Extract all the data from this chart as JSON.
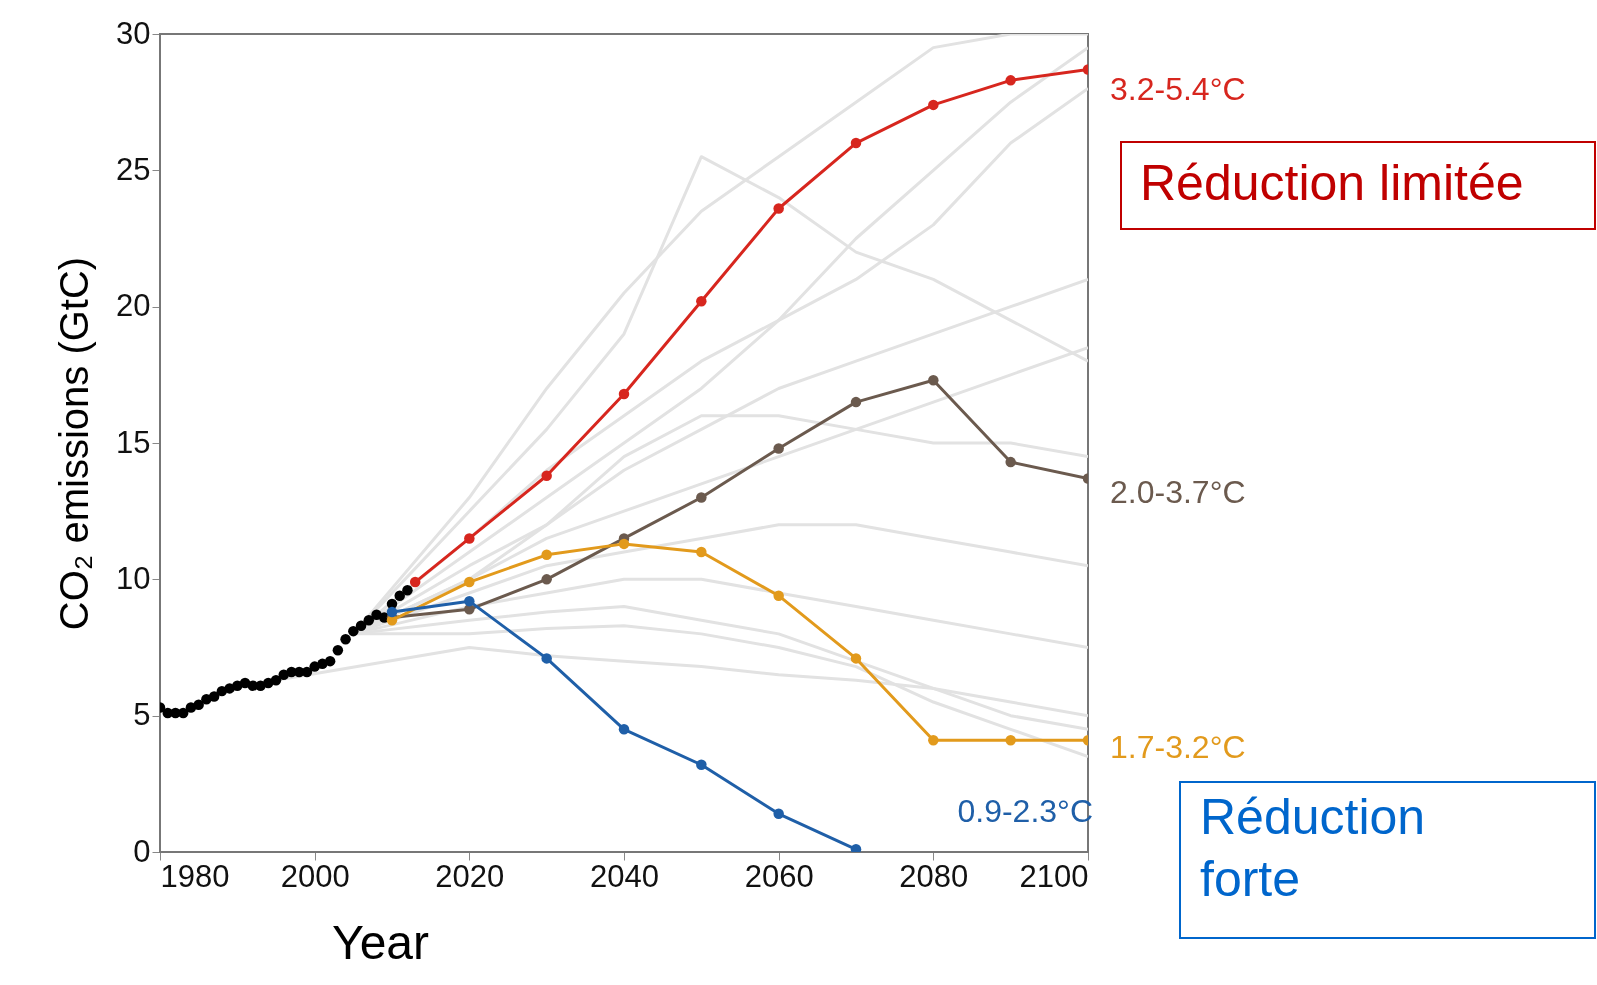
{
  "chart_data": {
    "type": "line",
    "xlabel": "Year",
    "ylabel": "CO₂ emissions (GtC)",
    "xlim": [
      1980,
      2100
    ],
    "xticks": [
      1980,
      2000,
      2020,
      2040,
      2060,
      2080,
      2100
    ],
    "ylim": [
      0,
      30
    ],
    "yticks": [
      0,
      5,
      10,
      15,
      20,
      25,
      30
    ],
    "grid": false,
    "marker": "circle",
    "series": [
      {
        "color": "#e2e2e2",
        "marker": "none",
        "x": [
          2005,
          2020,
          2030,
          2040,
          2050,
          2060,
          2070,
          2080,
          2090,
          2100
        ],
        "values": [
          8.0,
          13.0,
          17.0,
          20.5,
          23.5,
          25.5,
          27.5,
          29.5,
          30,
          30
        ]
      },
      {
        "color": "#e2e2e2",
        "marker": "none",
        "x": [
          2005,
          2020,
          2030,
          2040,
          2050,
          2060,
          2070,
          2080,
          2090,
          2100
        ],
        "values": [
          8.0,
          12.5,
          15.5,
          19.0,
          25.5,
          24.0,
          22.0,
          21.0,
          19.5,
          18.0
        ]
      },
      {
        "color": "#e2e2e2",
        "marker": "none",
        "x": [
          2005,
          2020,
          2030,
          2040,
          2050,
          2060,
          2070,
          2080,
          2090,
          2100
        ],
        "values": [
          8.0,
          11.0,
          13.0,
          15.0,
          17.0,
          19.5,
          22.5,
          25.0,
          27.5,
          29.5
        ]
      },
      {
        "color": "#e2e2e2",
        "marker": "none",
        "x": [
          2005,
          2020,
          2030,
          2040,
          2050,
          2060,
          2070,
          2080,
          2090,
          2100
        ],
        "values": [
          8.0,
          10.5,
          12.0,
          14.0,
          15.5,
          17.0,
          18.0,
          19.0,
          20.0,
          21.0
        ]
      },
      {
        "color": "#e2e2e2",
        "marker": "none",
        "x": [
          2005,
          2020,
          2030,
          2040,
          2050,
          2060,
          2070,
          2080,
          2090,
          2100
        ],
        "values": [
          8.0,
          10.0,
          11.5,
          12.5,
          13.5,
          14.5,
          15.5,
          16.5,
          17.5,
          18.5
        ]
      },
      {
        "color": "#e2e2e2",
        "marker": "none",
        "x": [
          2005,
          2020,
          2030,
          2040,
          2050,
          2060,
          2070,
          2080,
          2090,
          2100
        ],
        "values": [
          8.0,
          9.5,
          10.5,
          11.0,
          11.5,
          12.0,
          12.0,
          11.5,
          11.0,
          10.5
        ]
      },
      {
        "color": "#e2e2e2",
        "marker": "none",
        "x": [
          2005,
          2020,
          2030,
          2040,
          2050,
          2060,
          2070,
          2080,
          2090,
          2100
        ],
        "values": [
          8.0,
          9.0,
          9.5,
          10.0,
          10.0,
          9.5,
          9.0,
          8.5,
          8.0,
          7.5
        ]
      },
      {
        "color": "#e2e2e2",
        "marker": "none",
        "x": [
          2005,
          2020,
          2030,
          2040,
          2050,
          2060,
          2070,
          2080,
          2090,
          2100
        ],
        "values": [
          8.0,
          8.5,
          8.8,
          9.0,
          8.5,
          8.0,
          7.0,
          6.0,
          5.0,
          4.5
        ]
      },
      {
        "color": "#e2e2e2",
        "marker": "none",
        "x": [
          2005,
          2020,
          2030,
          2040,
          2050,
          2060,
          2070,
          2080,
          2090,
          2100
        ],
        "values": [
          8.0,
          8.0,
          8.2,
          8.3,
          8.0,
          7.5,
          6.8,
          5.5,
          4.5,
          3.5
        ]
      },
      {
        "color": "#e2e2e2",
        "marker": "none",
        "x": [
          2005,
          2020,
          2030,
          2040,
          2050,
          2060,
          2070,
          2080,
          2090,
          2100
        ],
        "values": [
          8.0,
          10.0,
          12.0,
          14.5,
          16.0,
          16.0,
          15.5,
          15.0,
          15.0,
          14.5
        ]
      },
      {
        "color": "#e2e2e2",
        "marker": "none",
        "x": [
          2005,
          2020,
          2030,
          2040,
          2050,
          2060,
          2070,
          2080,
          2090,
          2100
        ],
        "values": [
          8.0,
          11.5,
          14.0,
          16.0,
          18.0,
          19.5,
          21.0,
          23.0,
          26.0,
          28.0
        ]
      },
      {
        "color": "#e2e2e2",
        "marker": "none",
        "x": [
          1995,
          2020,
          2030,
          2040,
          2050,
          2060,
          2070,
          2080,
          2090,
          2100
        ],
        "values": [
          6.3,
          7.5,
          7.2,
          7.0,
          6.8,
          6.5,
          6.3,
          6.0,
          5.5,
          5.0
        ]
      },
      {
        "type": "scatter",
        "color": "#000000",
        "x": [
          1980,
          1981,
          1982,
          1983,
          1984,
          1985,
          1986,
          1987,
          1988,
          1989,
          1990,
          1991,
          1992,
          1993,
          1994,
          1995,
          1996,
          1997,
          1998,
          1999,
          2000,
          2001,
          2002,
          2003,
          2004,
          2005,
          2006,
          2007,
          2008,
          2009,
          2010,
          2011,
          2012
        ],
        "values": [
          5.3,
          5.1,
          5.1,
          5.1,
          5.3,
          5.4,
          5.6,
          5.7,
          5.9,
          6.0,
          6.1,
          6.2,
          6.1,
          6.1,
          6.2,
          6.3,
          6.5,
          6.6,
          6.6,
          6.6,
          6.8,
          6.9,
          7.0,
          7.4,
          7.8,
          8.1,
          8.3,
          8.5,
          8.7,
          8.6,
          9.1,
          9.4,
          9.6
        ]
      },
      {
        "color": "#d7261e",
        "x": [
          2013,
          2020,
          2030,
          2040,
          2050,
          2060,
          2070,
          2080,
          2090,
          2100
        ],
        "values": [
          9.9,
          11.5,
          13.8,
          16.8,
          20.2,
          23.6,
          26.0,
          27.4,
          28.3,
          28.7
        ]
      },
      {
        "color": "#6b5a4e",
        "x": [
          2010,
          2020,
          2030,
          2040,
          2050,
          2060,
          2070,
          2080,
          2090,
          2100
        ],
        "values": [
          8.6,
          8.9,
          10.0,
          11.5,
          13.0,
          14.8,
          16.5,
          17.3,
          14.3,
          13.7
        ]
      },
      {
        "color": "#e29a1c",
        "x": [
          2010,
          2020,
          2030,
          2040,
          2050,
          2060,
          2070,
          2080,
          2090,
          2100
        ],
        "values": [
          8.5,
          9.9,
          10.9,
          11.3,
          11.0,
          9.4,
          7.1,
          4.1,
          4.1,
          4.1
        ]
      },
      {
        "color": "#1f5fa8",
        "x": [
          2010,
          2020,
          2030,
          2040,
          2050,
          2060,
          2070
        ],
        "values": [
          8.8,
          9.2,
          7.1,
          4.5,
          3.2,
          1.4,
          0.1
        ]
      }
    ],
    "annotations": [
      "3.2-5.4°C",
      "2.0-3.7°C",
      "1.7-3.2°C",
      "0.9-2.3°C",
      "Réduction limitée",
      "Réduction forte"
    ]
  }
}
